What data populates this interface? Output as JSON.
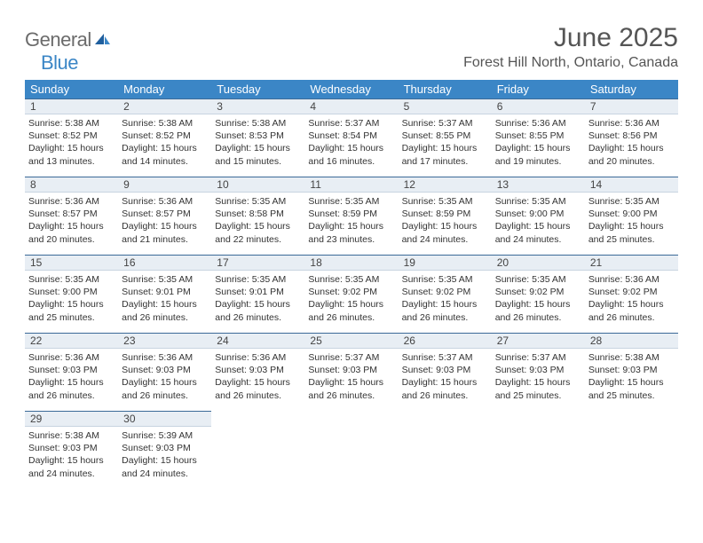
{
  "logo": {
    "general": "General",
    "blue": "Blue"
  },
  "title": "June 2025",
  "location": "Forest Hill North, Ontario, Canada",
  "colors": {
    "header_bg": "#3b86c6",
    "header_text": "#ffffff",
    "daynum_bg": "#e8eef4",
    "daynum_border_top": "#3b6a98",
    "logo_gray": "#6b6b6b",
    "logo_blue": "#3b86c6"
  },
  "weekdays": [
    "Sunday",
    "Monday",
    "Tuesday",
    "Wednesday",
    "Thursday",
    "Friday",
    "Saturday"
  ],
  "days": [
    {
      "n": 1,
      "sr": "5:38 AM",
      "ss": "8:52 PM",
      "dl": "15 hours and 13 minutes."
    },
    {
      "n": 2,
      "sr": "5:38 AM",
      "ss": "8:52 PM",
      "dl": "15 hours and 14 minutes."
    },
    {
      "n": 3,
      "sr": "5:38 AM",
      "ss": "8:53 PM",
      "dl": "15 hours and 15 minutes."
    },
    {
      "n": 4,
      "sr": "5:37 AM",
      "ss": "8:54 PM",
      "dl": "15 hours and 16 minutes."
    },
    {
      "n": 5,
      "sr": "5:37 AM",
      "ss": "8:55 PM",
      "dl": "15 hours and 17 minutes."
    },
    {
      "n": 6,
      "sr": "5:36 AM",
      "ss": "8:55 PM",
      "dl": "15 hours and 19 minutes."
    },
    {
      "n": 7,
      "sr": "5:36 AM",
      "ss": "8:56 PM",
      "dl": "15 hours and 20 minutes."
    },
    {
      "n": 8,
      "sr": "5:36 AM",
      "ss": "8:57 PM",
      "dl": "15 hours and 20 minutes."
    },
    {
      "n": 9,
      "sr": "5:36 AM",
      "ss": "8:57 PM",
      "dl": "15 hours and 21 minutes."
    },
    {
      "n": 10,
      "sr": "5:35 AM",
      "ss": "8:58 PM",
      "dl": "15 hours and 22 minutes."
    },
    {
      "n": 11,
      "sr": "5:35 AM",
      "ss": "8:59 PM",
      "dl": "15 hours and 23 minutes."
    },
    {
      "n": 12,
      "sr": "5:35 AM",
      "ss": "8:59 PM",
      "dl": "15 hours and 24 minutes."
    },
    {
      "n": 13,
      "sr": "5:35 AM",
      "ss": "9:00 PM",
      "dl": "15 hours and 24 minutes."
    },
    {
      "n": 14,
      "sr": "5:35 AM",
      "ss": "9:00 PM",
      "dl": "15 hours and 25 minutes."
    },
    {
      "n": 15,
      "sr": "5:35 AM",
      "ss": "9:00 PM",
      "dl": "15 hours and 25 minutes."
    },
    {
      "n": 16,
      "sr": "5:35 AM",
      "ss": "9:01 PM",
      "dl": "15 hours and 26 minutes."
    },
    {
      "n": 17,
      "sr": "5:35 AM",
      "ss": "9:01 PM",
      "dl": "15 hours and 26 minutes."
    },
    {
      "n": 18,
      "sr": "5:35 AM",
      "ss": "9:02 PM",
      "dl": "15 hours and 26 minutes."
    },
    {
      "n": 19,
      "sr": "5:35 AM",
      "ss": "9:02 PM",
      "dl": "15 hours and 26 minutes."
    },
    {
      "n": 20,
      "sr": "5:35 AM",
      "ss": "9:02 PM",
      "dl": "15 hours and 26 minutes."
    },
    {
      "n": 21,
      "sr": "5:36 AM",
      "ss": "9:02 PM",
      "dl": "15 hours and 26 minutes."
    },
    {
      "n": 22,
      "sr": "5:36 AM",
      "ss": "9:03 PM",
      "dl": "15 hours and 26 minutes."
    },
    {
      "n": 23,
      "sr": "5:36 AM",
      "ss": "9:03 PM",
      "dl": "15 hours and 26 minutes."
    },
    {
      "n": 24,
      "sr": "5:36 AM",
      "ss": "9:03 PM",
      "dl": "15 hours and 26 minutes."
    },
    {
      "n": 25,
      "sr": "5:37 AM",
      "ss": "9:03 PM",
      "dl": "15 hours and 26 minutes."
    },
    {
      "n": 26,
      "sr": "5:37 AM",
      "ss": "9:03 PM",
      "dl": "15 hours and 26 minutes."
    },
    {
      "n": 27,
      "sr": "5:37 AM",
      "ss": "9:03 PM",
      "dl": "15 hours and 25 minutes."
    },
    {
      "n": 28,
      "sr": "5:38 AM",
      "ss": "9:03 PM",
      "dl": "15 hours and 25 minutes."
    },
    {
      "n": 29,
      "sr": "5:38 AM",
      "ss": "9:03 PM",
      "dl": "15 hours and 24 minutes."
    },
    {
      "n": 30,
      "sr": "5:39 AM",
      "ss": "9:03 PM",
      "dl": "15 hours and 24 minutes."
    }
  ],
  "labels": {
    "sunrise": "Sunrise:",
    "sunset": "Sunset:",
    "daylight": "Daylight:"
  }
}
